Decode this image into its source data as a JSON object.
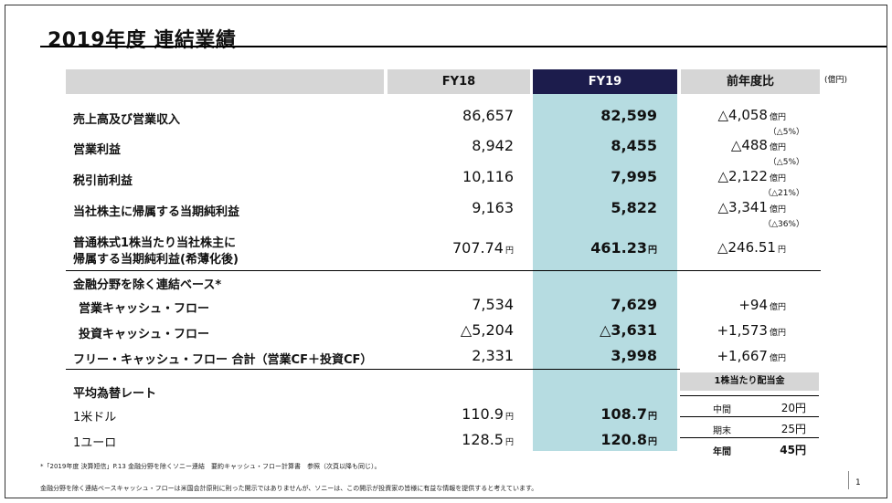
{
  "title": "2019年度 連結業績",
  "header": {
    "fy18": "FY18",
    "fy19": "FY19",
    "comparison": "前年度比",
    "unit": "(億円)"
  },
  "rows": [
    {
      "label": "売上高及び営業収入",
      "fy18": "86,657",
      "fy19": "82,599",
      "cmp": "△4,058",
      "cmp_unit": "億円",
      "pct": "（△5%）"
    },
    {
      "label": "営業利益",
      "fy18": "8,942",
      "fy19": "8,455",
      "cmp": "△488",
      "cmp_unit": "億円",
      "pct": "（△5%）"
    },
    {
      "label": "税引前利益",
      "fy18": "10,116",
      "fy19": "7,995",
      "cmp": "△2,122",
      "cmp_unit": "億円",
      "pct": "（△21%）"
    },
    {
      "label": "当社株主に帰属する当期純利益",
      "fy18": "9,163",
      "fy19": "5,822",
      "cmp": "△3,341",
      "cmp_unit": "億円",
      "pct": "（△36%）"
    },
    {
      "label_line1": "普通株式1株当たり当社株主に",
      "label_line2": "帰属する当期純利益(希薄化後)",
      "fy18": "707.74",
      "fy19": "461.23",
      "cmp": "△246.51",
      "unit": "円"
    }
  ],
  "cashflow": {
    "section_label": "金融分野を除く連結ベース*",
    "rows": [
      {
        "label": "営業キャッシュ・フロー",
        "fy18": "7,534",
        "fy19": "7,629",
        "cmp": "+94",
        "cmp_unit": "億円"
      },
      {
        "label": "投資キャッシュ・フロー",
        "fy18": "△5,204",
        "fy19": "△3,631",
        "cmp": "+1,573",
        "cmp_unit": "億円"
      },
      {
        "label": "フリー・キャッシュ・フロー 合計（営業CF＋投資CF）",
        "fy18": "2,331",
        "fy19": "3,998",
        "cmp": "+1,667",
        "cmp_unit": "億円"
      }
    ]
  },
  "fx": {
    "section_label": "平均為替レート",
    "rows": [
      {
        "label": "1米ドル",
        "fy18": "110.9",
        "fy19": "108.7",
        "unit": "円"
      },
      {
        "label": "1ユーロ",
        "fy18": "128.5",
        "fy19": "120.8",
        "unit": "円"
      }
    ]
  },
  "dividend": {
    "title": "1株当たり配当金",
    "rows": [
      {
        "label": "中間",
        "value": "20円"
      },
      {
        "label": "期末",
        "value": "25円"
      },
      {
        "label": "年間",
        "value": "45円"
      }
    ]
  },
  "footnotes": {
    "note1": "*「2019年度 決算短信」P.13 金融分野を除くソニー連結　要約キャッシュ・フロー計算書　参照（次頁以降も同じ）。",
    "note2": "金融分野を除く連結ベースキャッシュ・フローは米国会計原則に則った開示ではありませんが、ソニーは、この開示が投資家の皆様に有益な情報を提供すると考えています。"
  },
  "page_number": "1"
}
